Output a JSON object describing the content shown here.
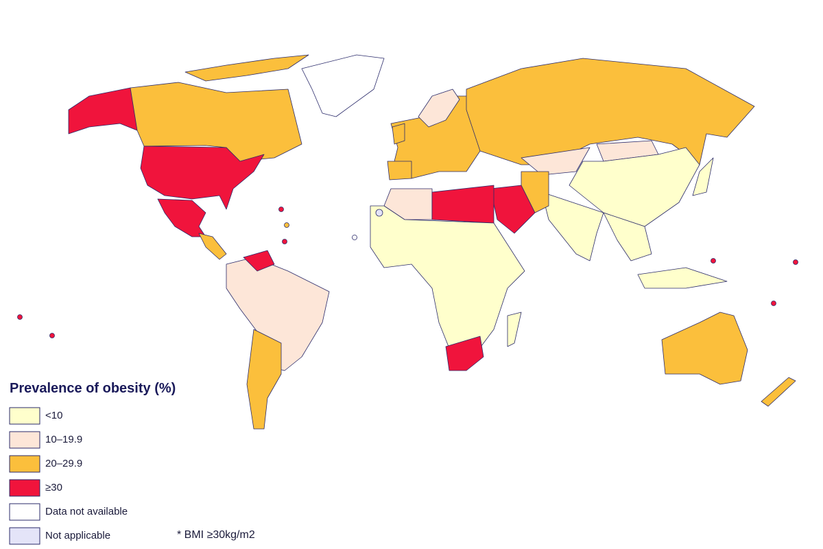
{
  "legend": {
    "title": "Prevalence of obesity (%)",
    "items": [
      {
        "label": "<10",
        "color": "#ffffcc"
      },
      {
        "label": "10–19.9",
        "color": "#fde6d8"
      },
      {
        "label": "20–29.9",
        "color": "#fbbf3c"
      },
      {
        "label": "≥30",
        "color": "#f0143c"
      },
      {
        "label": "Data not available",
        "color": "#ffffff"
      },
      {
        "label": "Not applicable",
        "color": "#e4e4f8"
      }
    ]
  },
  "note": "* BMI ≥30kg/m2"
}
